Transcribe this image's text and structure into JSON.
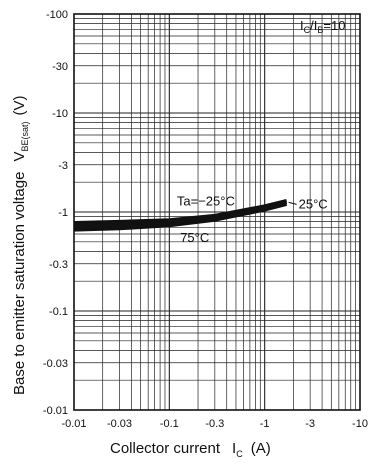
{
  "chart_data": {
    "type": "line",
    "title": "",
    "xlabel": "Collector current",
    "xlabel_symbol": "I",
    "xlabel_symbol_sub": "C",
    "xlabel_unit": "(A)",
    "ylabel": "Base to emitter saturation voltage",
    "ylabel_symbol": "V",
    "ylabel_symbol_sub": "BE(sat)",
    "ylabel_unit": "(V)",
    "x_scale": "log",
    "y_scale": "log",
    "xlim": [
      -0.01,
      -10
    ],
    "ylim": [
      -0.01,
      -100
    ],
    "x_ticks": [
      "-0.01",
      "-0.03",
      "-0.1",
      "-0.3",
      "-1",
      "-3",
      "-10"
    ],
    "y_ticks": [
      "-0.01",
      "-0.03",
      "-0.1",
      "-0.3",
      "-1",
      "-3",
      "-10",
      "-30",
      "-100"
    ],
    "x_tick_values": [
      0.01,
      0.03,
      0.1,
      0.3,
      1,
      3,
      10
    ],
    "y_tick_values": [
      0.01,
      0.03,
      0.1,
      0.3,
      1,
      3,
      10,
      30,
      100
    ],
    "grid": true,
    "condition": {
      "prefix": "I",
      "sub1": "C",
      "mid": "/I",
      "sub2": "B",
      "suffix": "=10"
    },
    "series": [
      {
        "name": "Ta=-25°C",
        "x": [
          0.01,
          0.03,
          0.1,
          0.3,
          1,
          1.7
        ],
        "y": [
          0.78,
          0.8,
          0.83,
          0.92,
          1.15,
          1.3
        ]
      },
      {
        "name": "25°C",
        "x": [
          0.01,
          0.03,
          0.1,
          0.3,
          1,
          1.7
        ],
        "y": [
          0.72,
          0.74,
          0.78,
          0.88,
          1.1,
          1.25
        ]
      },
      {
        "name": "75°C",
        "x": [
          0.01,
          0.03,
          0.1,
          0.3,
          1,
          1.7
        ],
        "y": [
          0.66,
          0.68,
          0.73,
          0.83,
          1.05,
          1.2
        ]
      }
    ],
    "annotations": [
      {
        "text": "Ta=−25°C",
        "series": 0
      },
      {
        "text": "25°C",
        "series": 1
      },
      {
        "text": "75°C",
        "series": 2
      }
    ]
  }
}
